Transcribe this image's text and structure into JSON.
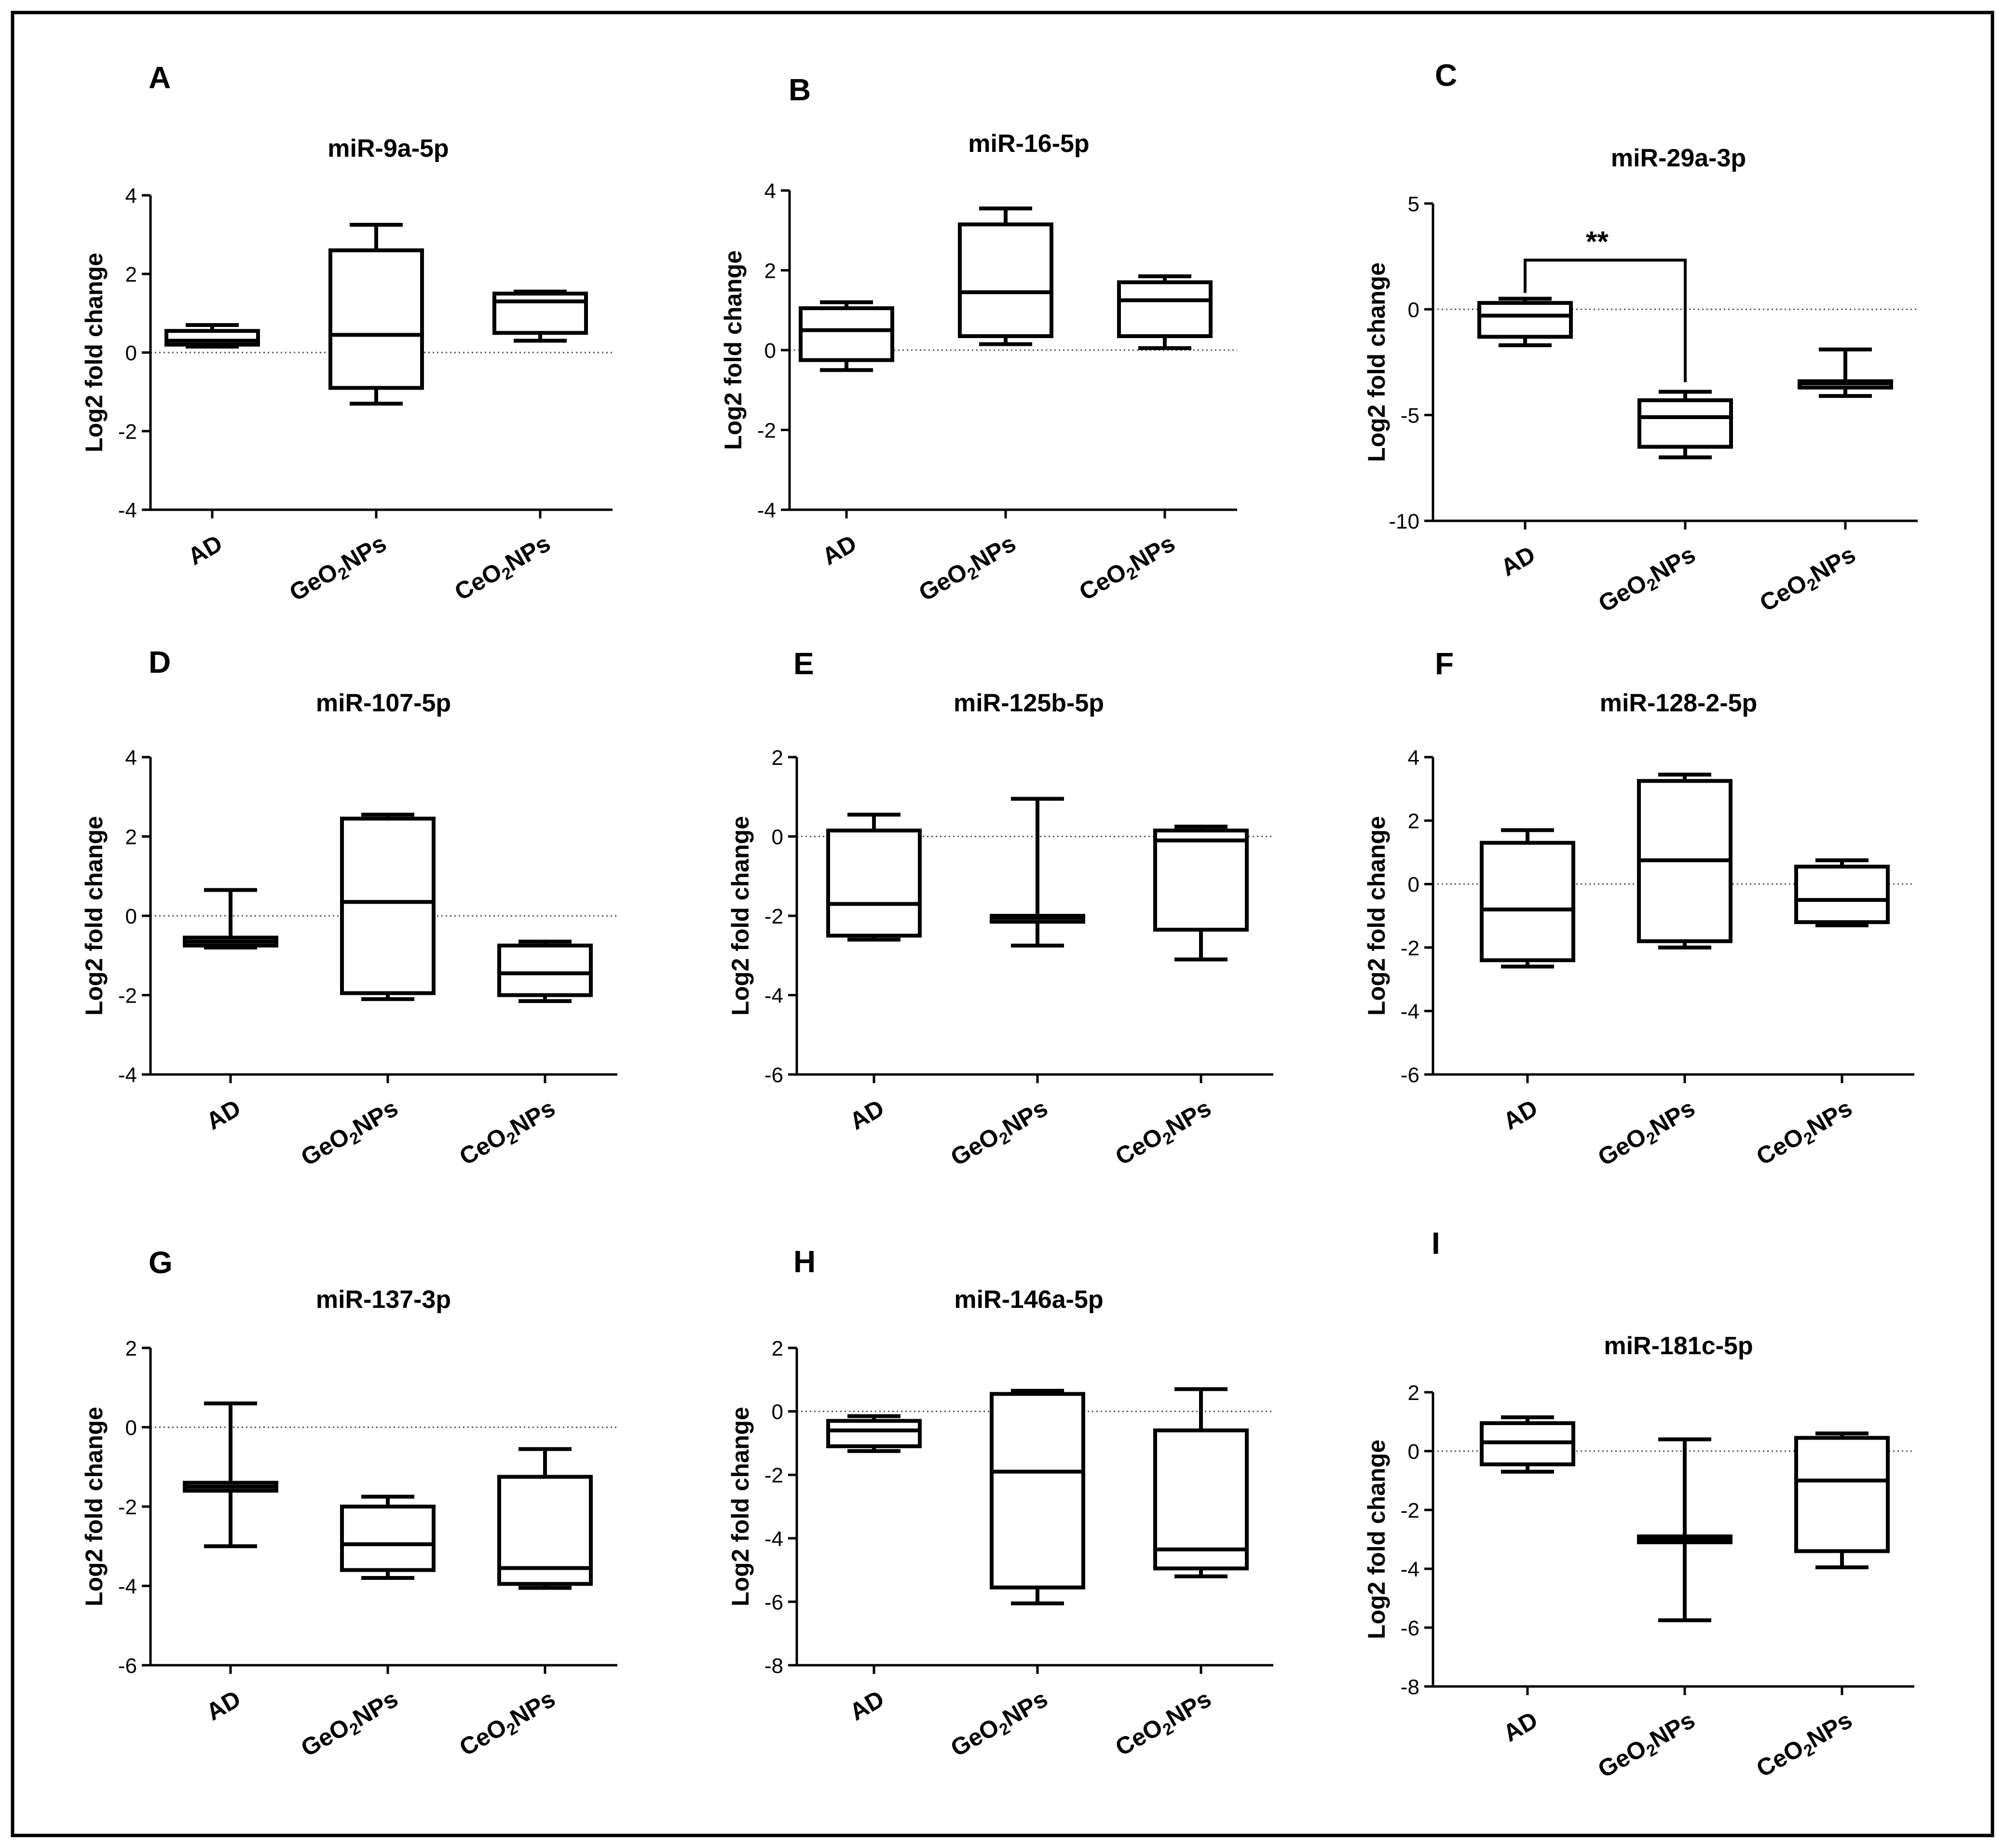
{
  "figure": {
    "groups": [
      "AD",
      "GeO2NPs",
      "CeO2NPs"
    ],
    "ylabel": "Log2 fold change"
  },
  "chart_data": [
    {
      "type": "box",
      "panel": "A",
      "title": "miR-9a-5p",
      "ylabel": "Log2 fold change",
      "ylim": [
        -4,
        4
      ],
      "yticks": [
        4,
        2,
        0,
        -2,
        -4
      ],
      "categories": [
        "AD",
        "GeO2NPs",
        "CeO2NPs"
      ],
      "boxes": [
        {
          "min": 0.15,
          "q1": 0.2,
          "median": 0.3,
          "q3": 0.55,
          "max": 0.7
        },
        {
          "min": -1.3,
          "q1": -0.9,
          "median": 0.45,
          "q3": 2.6,
          "max": 3.25
        },
        {
          "min": 0.3,
          "q1": 0.5,
          "median": 1.3,
          "q3": 1.5,
          "max": 1.55
        }
      ],
      "annotations": []
    },
    {
      "type": "box",
      "panel": "B",
      "title": "miR-16-5p",
      "ylabel": "Log2 fold change",
      "ylim": [
        -4,
        4
      ],
      "yticks": [
        4,
        2,
        0,
        -2,
        -4
      ],
      "categories": [
        "AD",
        "GeO2NPs",
        "CeO2NPs"
      ],
      "boxes": [
        {
          "min": -0.5,
          "q1": -0.25,
          "median": 0.5,
          "q3": 1.05,
          "max": 1.2
        },
        {
          "min": 0.15,
          "q1": 0.35,
          "median": 1.45,
          "q3": 3.15,
          "max": 3.55
        },
        {
          "min": 0.05,
          "q1": 0.35,
          "median": 1.25,
          "q3": 1.7,
          "max": 1.85
        }
      ],
      "annotations": []
    },
    {
      "type": "box",
      "panel": "C",
      "title": "miR-29a-3p",
      "ylabel": "Log2 fold change",
      "ylim": [
        -10,
        5
      ],
      "yticks": [
        5,
        0,
        -5,
        -10
      ],
      "categories": [
        "AD",
        "GeO2NPs",
        "CeO2NPs"
      ],
      "boxes": [
        {
          "min": -1.7,
          "q1": -1.3,
          "median": -0.3,
          "q3": 0.3,
          "max": 0.5
        },
        {
          "min": -7.0,
          "q1": -6.5,
          "median": -5.1,
          "q3": -4.3,
          "max": -3.9
        },
        {
          "min": -4.1,
          "q1": -3.7,
          "median": -3.5,
          "q3": -3.4,
          "max": -1.9
        }
      ],
      "annotations": [
        {
          "text": "**",
          "from": 0,
          "to": 1
        }
      ]
    },
    {
      "type": "box",
      "panel": "D",
      "title": "miR-107-5p",
      "ylabel": "Log2 fold change",
      "ylim": [
        -4,
        4
      ],
      "yticks": [
        4,
        2,
        0,
        -2,
        -4
      ],
      "categories": [
        "AD",
        "GeO2NPs",
        "CeO2NPs"
      ],
      "boxes": [
        {
          "min": -0.8,
          "q1": -0.75,
          "median": -0.65,
          "q3": -0.55,
          "max": 0.65
        },
        {
          "min": -2.1,
          "q1": -1.95,
          "median": 0.35,
          "q3": 2.45,
          "max": 2.55
        },
        {
          "min": -2.15,
          "q1": -2.0,
          "median": -1.45,
          "q3": -0.75,
          "max": -0.65
        }
      ],
      "annotations": []
    },
    {
      "type": "box",
      "panel": "E",
      "title": "miR-125b-5p",
      "ylabel": "Log2 fold change",
      "ylim": [
        -6,
        2
      ],
      "yticks": [
        2,
        0,
        -2,
        -4,
        -6
      ],
      "categories": [
        "AD",
        "GeO2NPs",
        "CeO2NPs"
      ],
      "boxes": [
        {
          "min": -2.6,
          "q1": -2.5,
          "median": -1.7,
          "q3": 0.15,
          "max": 0.55
        },
        {
          "min": -2.75,
          "q1": -2.15,
          "median": -2.05,
          "q3": -2.0,
          "max": 0.95
        },
        {
          "min": -3.1,
          "q1": -2.35,
          "median": -0.1,
          "q3": 0.15,
          "max": 0.25
        }
      ],
      "annotations": []
    },
    {
      "type": "box",
      "panel": "F",
      "title": "miR-128-2-5p",
      "ylabel": "Log2 fold change",
      "ylim": [
        -6,
        4
      ],
      "yticks": [
        4,
        2,
        0,
        -2,
        -4,
        -6
      ],
      "categories": [
        "AD",
        "GeO2NPs",
        "CeO2NPs"
      ],
      "boxes": [
        {
          "min": -2.6,
          "q1": -2.4,
          "median": -0.8,
          "q3": 1.3,
          "max": 1.7
        },
        {
          "min": -2.0,
          "q1": -1.8,
          "median": 0.75,
          "q3": 3.25,
          "max": 3.45
        },
        {
          "min": -1.3,
          "q1": -1.2,
          "median": -0.5,
          "q3": 0.55,
          "max": 0.75
        }
      ],
      "annotations": []
    },
    {
      "type": "box",
      "panel": "G",
      "title": "miR-137-3p",
      "ylabel": "Log2 fold change",
      "ylim": [
        -6,
        2
      ],
      "yticks": [
        2,
        0,
        -2,
        -4,
        -6
      ],
      "categories": [
        "AD",
        "GeO2NPs",
        "CeO2NPs"
      ],
      "boxes": [
        {
          "min": -3.0,
          "q1": -1.6,
          "median": -1.5,
          "q3": -1.4,
          "max": 0.6
        },
        {
          "min": -3.8,
          "q1": -3.6,
          "median": -2.95,
          "q3": -2.0,
          "max": -1.75
        },
        {
          "min": -4.05,
          "q1": -3.95,
          "median": -3.55,
          "q3": -1.25,
          "max": -0.55
        }
      ],
      "annotations": []
    },
    {
      "type": "box",
      "panel": "H",
      "title": "miR-146a-5p",
      "ylabel": "Log2 fold change",
      "ylim": [
        -8,
        2
      ],
      "yticks": [
        2,
        0,
        -2,
        -4,
        -6,
        -8
      ],
      "categories": [
        "AD",
        "GeO2NPs",
        "CeO2NPs"
      ],
      "boxes": [
        {
          "min": -1.25,
          "q1": -1.1,
          "median": -0.6,
          "q3": -0.3,
          "max": -0.15
        },
        {
          "min": -6.05,
          "q1": -5.55,
          "median": -1.9,
          "q3": 0.55,
          "max": 0.65
        },
        {
          "min": -5.2,
          "q1": -4.95,
          "median": -4.35,
          "q3": -0.6,
          "max": 0.7
        }
      ],
      "annotations": []
    },
    {
      "type": "box",
      "panel": "I",
      "title": "miR-181c-5p",
      "ylabel": "Log2 fold change",
      "ylim": [
        -8,
        2
      ],
      "yticks": [
        2,
        0,
        -2,
        -4,
        -6,
        -8
      ],
      "categories": [
        "AD",
        "GeO2NPs",
        "CeO2NPs"
      ],
      "boxes": [
        {
          "min": -0.7,
          "q1": -0.45,
          "median": 0.3,
          "q3": 0.95,
          "max": 1.15
        },
        {
          "min": -5.75,
          "q1": -3.1,
          "median": -3.0,
          "q3": -2.9,
          "max": 0.4
        },
        {
          "min": -3.95,
          "q1": -3.4,
          "median": -1.0,
          "q3": 0.45,
          "max": 0.6
        }
      ],
      "annotations": []
    }
  ]
}
